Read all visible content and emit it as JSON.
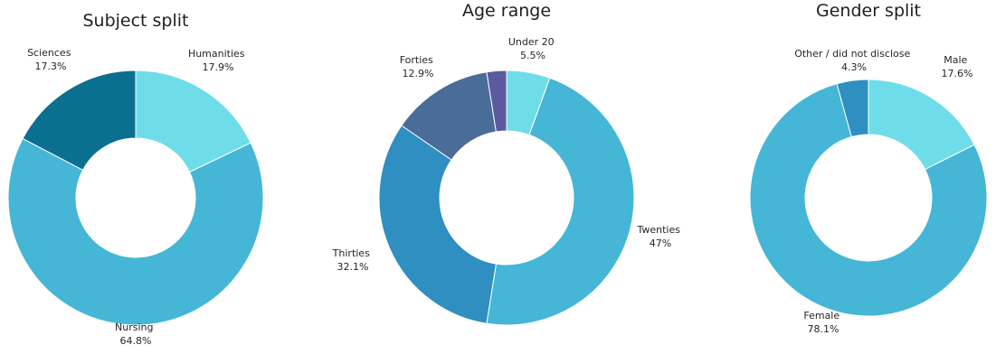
{
  "chart_data": [
    {
      "type": "pie",
      "title": "Subject split",
      "start_category": "Humanities",
      "categories": [
        "Humanities",
        "Nursing",
        "Sciences"
      ],
      "values": [
        17.9,
        64.8,
        17.3
      ],
      "value_labels": [
        "17.9%",
        "64.8%",
        "17.3%"
      ],
      "colors": [
        "#6fdde9",
        "#45b6d6",
        "#0b6f90"
      ],
      "legend": "none",
      "donut": true
    },
    {
      "type": "pie",
      "title": "Age range",
      "start_category": "Under 20",
      "categories": [
        "Under 20",
        "Twenties",
        "Thirties",
        "Forties",
        ""
      ],
      "values": [
        5.5,
        47,
        32.1,
        12.9,
        2.5
      ],
      "value_labels": [
        "5.5%",
        "47%",
        "32.1%",
        "12.9%",
        ""
      ],
      "colors": [
        "#6fdde9",
        "#45b6d6",
        "#2e8fc0",
        "#4a6c99",
        "#5b5a9e"
      ],
      "legend": "none",
      "donut": true
    },
    {
      "type": "pie",
      "title": "Gender split",
      "start_category": "Male",
      "categories": [
        "Male",
        "Female",
        "Other / did not disclose"
      ],
      "values": [
        17.6,
        78.1,
        4.3
      ],
      "value_labels": [
        "17.6%",
        "78.1%",
        "4.3%"
      ],
      "colors": [
        "#6fdde9",
        "#45b6d6",
        "#2e8fc0"
      ],
      "legend": "none",
      "donut": true
    }
  ]
}
